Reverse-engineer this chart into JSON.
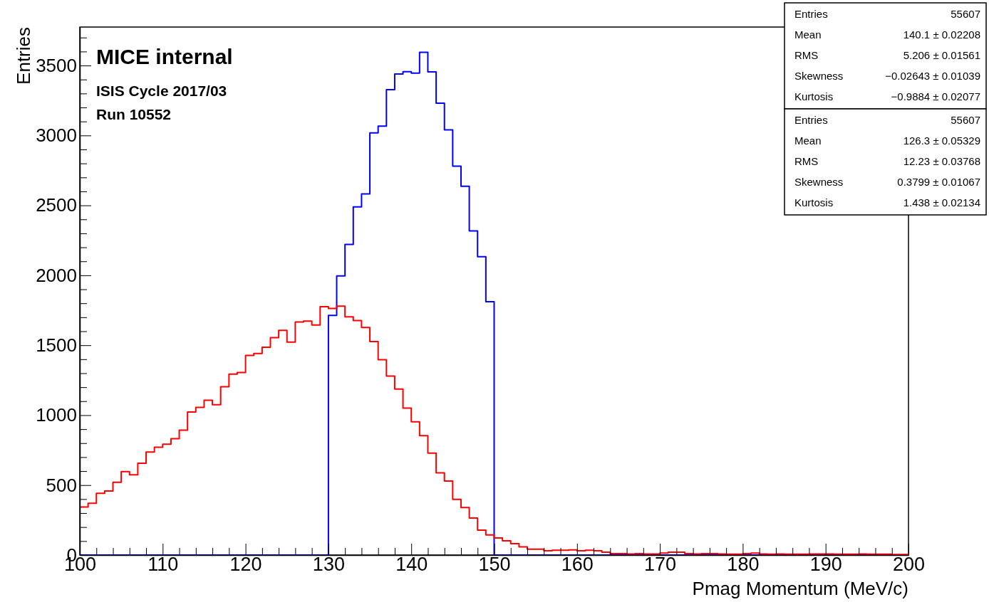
{
  "chart_data": {
    "type": "histogram",
    "xlabel": "Pmag Momentum (MeV/c)",
    "ylabel": "Entries",
    "bins": [
      100,
      101,
      102,
      103,
      104,
      105,
      106,
      107,
      108,
      109,
      110,
      111,
      112,
      113,
      114,
      115,
      116,
      117,
      118,
      119,
      120,
      121,
      122,
      123,
      124,
      125,
      126,
      127,
      128,
      129,
      130,
      131,
      132,
      133,
      134,
      135,
      136,
      137,
      138,
      139,
      140,
      141,
      142,
      143,
      144,
      145,
      146,
      147,
      148,
      149,
      150,
      151,
      152,
      153,
      154,
      155,
      156,
      157,
      158,
      159,
      160,
      161,
      162,
      163,
      164,
      165,
      166,
      167,
      168,
      169,
      170,
      171,
      172,
      173,
      174,
      175,
      176,
      177,
      178,
      179,
      180,
      181,
      182,
      183,
      184,
      185,
      186,
      187,
      188,
      189,
      190,
      191,
      192,
      193,
      194,
      195,
      196,
      197,
      198,
      199,
      200
    ],
    "series": [
      {
        "color": "#0000ff",
        "values": [
          0,
          0,
          0,
          0,
          0,
          0,
          0,
          0,
          0,
          0,
          0,
          0,
          0,
          0,
          0,
          0,
          0,
          0,
          0,
          0,
          0,
          0,
          0,
          0,
          0,
          0,
          0,
          0,
          0,
          0,
          1713,
          1996,
          2221,
          2489,
          2582,
          3018,
          3066,
          3327,
          3439,
          3456,
          3445,
          3595,
          3454,
          3230,
          3040,
          2781,
          2637,
          2318,
          2133,
          1811,
          0,
          0,
          0,
          0,
          0,
          0,
          0,
          0,
          0,
          0,
          0,
          0,
          0,
          0,
          0,
          0,
          0,
          0,
          0,
          0,
          0,
          0,
          0,
          0,
          0,
          0,
          0,
          0,
          0,
          0,
          0,
          0,
          0,
          0,
          0,
          0,
          0,
          0,
          0,
          0,
          0,
          0,
          0,
          0,
          0,
          0,
          0,
          0,
          0,
          0
        ]
      },
      {
        "color": "#ff0000",
        "values": [
          344,
          370,
          441,
          458,
          520,
          597,
          573,
          656,
          736,
          771,
          792,
          832,
          893,
          1022,
          1056,
          1107,
          1075,
          1203,
          1293,
          1305,
          1427,
          1441,
          1485,
          1554,
          1607,
          1522,
          1666,
          1673,
          1644,
          1775,
          1763,
          1780,
          1703,
          1676,
          1627,
          1526,
          1397,
          1280,
          1187,
          1051,
          953,
          854,
          729,
          588,
          529,
          398,
          339,
          264,
          178,
          144,
          122,
          102,
          81,
          59,
          42,
          42,
          31,
          34,
          34,
          37,
          30,
          34,
          30,
          20,
          10,
          10,
          8,
          10,
          8,
          8,
          14,
          20,
          20,
          10,
          8,
          10,
          10,
          8,
          6,
          6,
          10,
          14,
          8,
          6,
          8,
          6,
          6,
          6,
          8,
          8,
          8,
          6,
          6,
          6,
          8,
          6,
          6,
          6,
          4,
          4
        ]
      }
    ],
    "xlim": [
      100,
      200
    ],
    "xticks": [
      100,
      {
        "value": 102,
        "label": null
      },
      {
        "value": 104,
        "label": null
      },
      {
        "value": 106,
        "label": null
      },
      {
        "value": 108,
        "label": null
      },
      110,
      {
        "value": 112,
        "label": null
      },
      {
        "value": 114,
        "label": null
      },
      {
        "value": 116,
        "label": null
      },
      {
        "value": 118,
        "label": null
      },
      120,
      {
        "value": 122,
        "label": null
      },
      {
        "value": 124,
        "label": null
      },
      {
        "value": 126,
        "label": null
      },
      {
        "value": 128,
        "label": null
      },
      130,
      {
        "value": 132,
        "label": null
      },
      {
        "value": 134,
        "label": null
      },
      {
        "value": 136,
        "label": null
      },
      {
        "value": 138,
        "label": null
      },
      140,
      {
        "value": 142,
        "label": null
      },
      {
        "value": 144,
        "label": null
      },
      {
        "value": 146,
        "label": null
      },
      {
        "value": 148,
        "label": null
      },
      150,
      {
        "value": 152,
        "label": null
      },
      {
        "value": 154,
        "label": null
      },
      {
        "value": 156,
        "label": null
      },
      {
        "value": 158,
        "label": null
      },
      160,
      {
        "value": 162,
        "label": null
      },
      {
        "value": 164,
        "label": null
      },
      {
        "value": 166,
        "label": null
      },
      {
        "value": 168,
        "label": null
      },
      170,
      {
        "value": 172,
        "label": null
      },
      {
        "value": 174,
        "label": null
      },
      {
        "value": 176,
        "label": null
      },
      {
        "value": 178,
        "label": null
      },
      180,
      {
        "value": 182,
        "label": null
      },
      {
        "value": 184,
        "label": null
      },
      {
        "value": 186,
        "label": null
      },
      {
        "value": 188,
        "label": null
      },
      190,
      {
        "value": 192,
        "label": null
      },
      {
        "value": 194,
        "label": null
      },
      {
        "value": 196,
        "label": null
      },
      {
        "value": 198,
        "label": null
      },
      200
    ],
    "ylim": [
      0,
      3775
    ],
    "yticks": [
      0,
      {
        "value": 100,
        "label": null
      },
      {
        "value": 200,
        "label": null
      },
      {
        "value": 300,
        "label": null
      },
      {
        "value": 400,
        "label": null
      },
      500,
      {
        "value": 600,
        "label": null
      },
      {
        "value": 700,
        "label": null
      },
      {
        "value": 800,
        "label": null
      },
      {
        "value": 900,
        "label": null
      },
      1000,
      {
        "value": 1100,
        "label": null
      },
      {
        "value": 1200,
        "label": null
      },
      {
        "value": 1300,
        "label": null
      },
      {
        "value": 1400,
        "label": null
      },
      1500,
      {
        "value": 1600,
        "label": null
      },
      {
        "value": 1700,
        "label": null
      },
      {
        "value": 1800,
        "label": null
      },
      {
        "value": 1900,
        "label": null
      },
      2000,
      {
        "value": 2100,
        "label": null
      },
      {
        "value": 2200,
        "label": null
      },
      {
        "value": 2300,
        "label": null
      },
      {
        "value": 2400,
        "label": null
      },
      2500,
      {
        "value": 2600,
        "label": null
      },
      {
        "value": 2700,
        "label": null
      },
      {
        "value": 2800,
        "label": null
      },
      {
        "value": 2900,
        "label": null
      },
      3000,
      {
        "value": 3100,
        "label": null
      },
      {
        "value": 3200,
        "label": null
      },
      {
        "value": 3300,
        "label": null
      },
      {
        "value": 3400,
        "label": null
      },
      3500,
      {
        "value": 3600,
        "label": null
      },
      {
        "value": 3700,
        "label": null
      }
    ],
    "annotations": [
      "MICE internal",
      "ISIS Cycle 2017/03",
      "Run 10552",
      "Entries 55607",
      "Mean 140.1 ± 0.02208",
      "RMS 5.206 ± 0.01561",
      "Skewness −0.02643 ± 0.01039",
      "Kurtosis −0.9884 ± 0.02077",
      "Entries 55607",
      "Mean 126.3 ± 0.05329",
      "RMS 12.23 ± 0.03768",
      "Skewness 0.3799 ± 0.01067",
      "Kurtosis 1.438 ± 0.02134"
    ]
  }
}
